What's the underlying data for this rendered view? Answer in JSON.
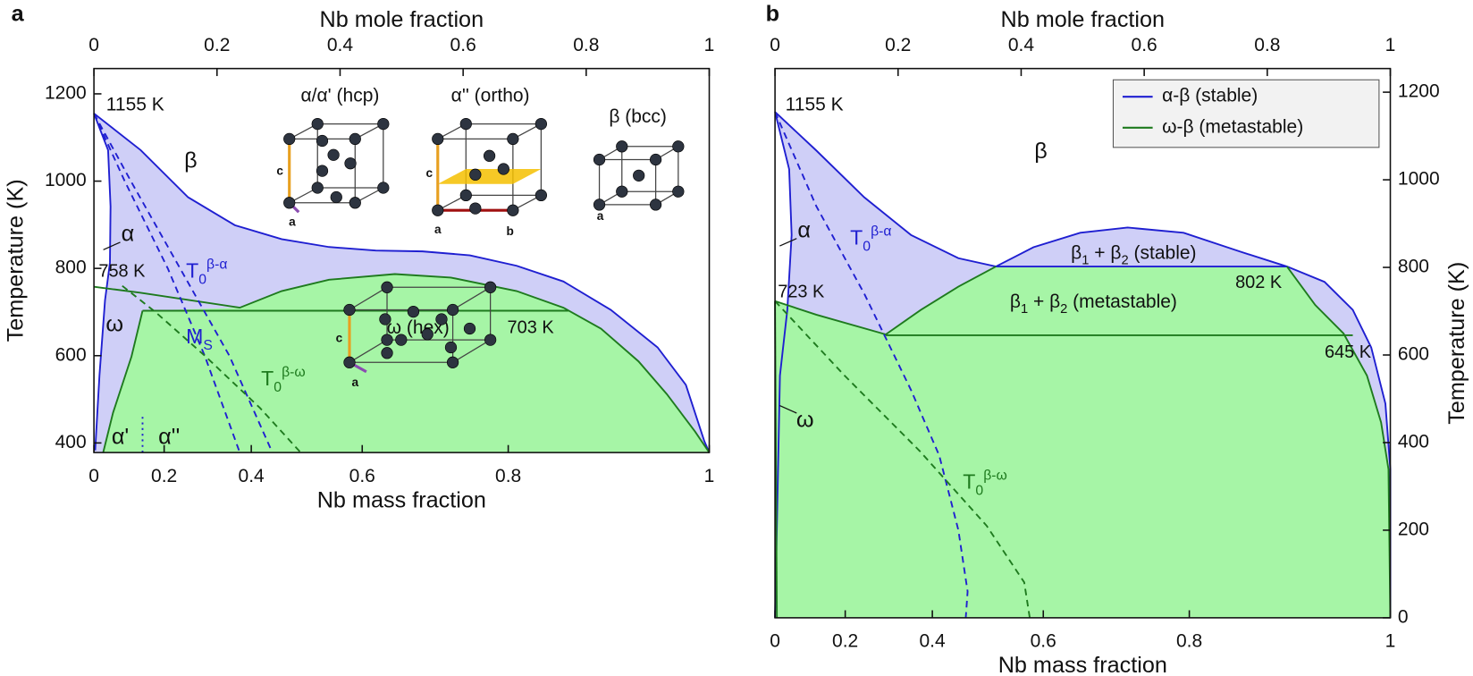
{
  "chart_data": [
    {
      "type": "line",
      "panel_label": "a",
      "x_title_top": "Nb mole fraction",
      "x_title": "Nb mass fraction",
      "y_title": "Temperature (K)",
      "xlim": [
        0,
        1
      ],
      "ylim": [
        378,
        1258
      ],
      "xticks_top": [
        0,
        0.2,
        0.4,
        0.6,
        0.8,
        1
      ],
      "xticks": [
        0,
        {
          "value": 0.1141,
          "label": "0.2"
        },
        {
          "value": 0.2557,
          "label": "0.4"
        },
        {
          "value": 0.436,
          "label": "0.6"
        },
        {
          "value": 0.6733,
          "label": "0.8"
        },
        1
      ],
      "yticks": [
        400,
        600,
        800,
        1000,
        1200
      ],
      "areas": [
        {
          "color": "#cfcff7",
          "x": [
            0,
            0.076,
            0.153,
            0.229,
            0.305,
            0.382,
            0.458,
            0.534,
            0.611,
            0.687,
            0.763,
            0.84,
            0.916,
            0.962,
            0.992,
            1,
            0
          ],
          "y": [
            1155,
            1071,
            963,
            899,
            867,
            849,
            841,
            839,
            830,
            806,
            770,
            705,
            619,
            533,
            404,
            378,
            378
          ]
        },
        {
          "color": "#ffffff",
          "x": [
            0,
            0.023,
            0.027,
            0.026,
            0.018,
            0.009,
            0.002,
            0
          ],
          "y": [
            1155,
            1071,
            942,
            813,
            727,
            555,
            383,
            378
          ]
        },
        {
          "color": "#a6f5a6",
          "x": [
            0.015,
            0.031,
            0.061,
            0.079,
            0.237,
            0.305,
            0.382,
            0.489,
            0.58,
            0.687,
            0.763,
            0.824,
            0.885,
            0.931,
            0.977,
            1
          ],
          "y": [
            378,
            469,
            598,
            703,
            710,
            748,
            774,
            787,
            779,
            748,
            710,
            662,
            587,
            512,
            426,
            378
          ]
        }
      ],
      "series": [
        {
          "color": "#1f1fd1",
          "style": "solid",
          "x": [
            0,
            0.076,
            0.153,
            0.229,
            0.305,
            0.382,
            0.458,
            0.534,
            0.611,
            0.687,
            0.763,
            0.84,
            0.916,
            0.962,
            0.992,
            1
          ],
          "y": [
            1155,
            1071,
            963,
            899,
            867,
            849,
            841,
            839,
            830,
            806,
            770,
            705,
            619,
            533,
            404,
            378
          ]
        },
        {
          "color": "#1f1fd1",
          "style": "solid",
          "x": [
            0,
            0.023,
            0.027,
            0.026,
            0.018,
            0.009,
            0.002
          ],
          "y": [
            1155,
            1071,
            942,
            813,
            727,
            555,
            383
          ]
        },
        {
          "color": "#1e7a1e",
          "style": "solid",
          "x": [
            0,
            0.076,
            0.237,
            0.305,
            0.382,
            0.489,
            0.58,
            0.687,
            0.763,
            0.824,
            0.885,
            0.931,
            0.977,
            1
          ],
          "y": [
            758,
            744,
            710,
            748,
            774,
            787,
            779,
            748,
            710,
            662,
            587,
            512,
            426,
            378
          ]
        },
        {
          "color": "#1e7a1e",
          "style": "solid",
          "x": [
            0.079,
            0.771
          ],
          "y": [
            703,
            703
          ]
        },
        {
          "color": "#1e7a1e",
          "style": "solid",
          "x": [
            0.079,
            0.061,
            0.031,
            0.015
          ],
          "y": [
            703,
            598,
            469,
            378
          ]
        },
        {
          "color": "#1f1fd1",
          "style": "dashed",
          "x": [
            0,
            0.05,
            0.12,
            0.18,
            0.237
          ],
          "y": [
            1155,
            1000,
            800,
            600,
            378
          ]
        },
        {
          "color": "#1f1fd1",
          "style": "dashed",
          "x": [
            0,
            0.06,
            0.14,
            0.22,
            0.29
          ],
          "y": [
            1155,
            1000,
            800,
            600,
            378
          ]
        },
        {
          "color": "#1e7a1e",
          "style": "dashed",
          "x": [
            0.046,
            0.1,
            0.18,
            0.27,
            0.336
          ],
          "y": [
            760,
            700,
            600,
            480,
            378
          ]
        },
        {
          "color": "#1f1fd1",
          "style": "dotted",
          "x": [
            0.079,
            0.079
          ],
          "y": [
            378,
            460
          ]
        }
      ],
      "annotations": [
        {
          "segments": [
            {
              "t": "1155 K"
            }
          ]
        },
        {
          "segments": [
            {
              "t": "β"
            }
          ]
        },
        {
          "segments": [
            {
              "t": "α"
            }
          ]
        },
        {
          "segments": [
            {
              "t": "758 K"
            }
          ]
        },
        {
          "segments": [
            {
              "t": "ω"
            }
          ]
        },
        {
          "segments": [
            {
              "t": "T"
            },
            {
              "t": "0",
              "s": "sub"
            },
            {
              "t": "β-α",
              "s": "super"
            }
          ]
        },
        {
          "segments": [
            {
              "t": "M"
            },
            {
              "t": "S",
              "s": "sub"
            }
          ]
        },
        {
          "segments": [
            {
              "t": "T"
            },
            {
              "t": "0",
              "s": "sub"
            },
            {
              "t": "β-ω",
              "s": "super"
            }
          ]
        },
        {
          "segments": [
            {
              "t": "703 K"
            }
          ]
        },
        {
          "segments": [
            {
              "t": "α'"
            }
          ]
        },
        {
          "segments": [
            {
              "t": "α''"
            }
          ]
        }
      ],
      "insets": [
        {
          "title": "α/α' (hcp)",
          "labels": [
            "c",
            "a"
          ]
        },
        {
          "title": "α'' (ortho)",
          "labels": [
            "c",
            "a",
            "b"
          ]
        },
        {
          "title": "β (bcc)",
          "labels": [
            "a"
          ]
        },
        {
          "title": "ω (hex)",
          "labels": [
            "c",
            "a"
          ]
        }
      ]
    },
    {
      "type": "line",
      "panel_label": "b",
      "x_title_top": "Nb mole fraction",
      "x_title": "Nb mass fraction",
      "y_title": "Temperature (K)",
      "xlim": [
        0,
        1
      ],
      "ylim": [
        0,
        1254
      ],
      "xticks_top": [
        0,
        0.2,
        0.4,
        0.6,
        0.8,
        1
      ],
      "xticks": [
        0,
        {
          "value": 0.1141,
          "label": "0.2"
        },
        {
          "value": 0.2557,
          "label": "0.4"
        },
        {
          "value": 0.436,
          "label": "0.6"
        },
        {
          "value": 0.6733,
          "label": "0.8"
        },
        1
      ],
      "yticks": [
        0,
        200,
        400,
        600,
        800,
        1000,
        1200
      ],
      "legend": {
        "position": "upper right",
        "entries": [
          {
            "name": "α-β (stable)",
            "color": "#1f1fd1"
          },
          {
            "name": "ω-β (metastable)",
            "color": "#1e7a1e"
          }
        ]
      },
      "areas": [
        {
          "color": "#cfcff7",
          "x": [
            0,
            0.067,
            0.145,
            0.221,
            0.298,
            0.359,
            0.42,
            0.496,
            0.573,
            0.664,
            0.756,
            0.832,
            0.893,
            0.939,
            0.969,
            0.992,
            1,
            1,
            0
          ],
          "y": [
            1155,
            1067,
            960,
            874,
            821,
            802,
            846,
            879,
            891,
            879,
            836,
            802,
            767,
            703,
            617,
            489,
            339,
            0,
            0
          ]
        },
        {
          "color": "#ffffff",
          "x": [
            0,
            0.023,
            0.027,
            0.02,
            0.008,
            0
          ],
          "y": [
            1155,
            1024,
            874,
            703,
            553,
            0
          ]
        },
        {
          "color": "#a6f5a6",
          "x": [
            0,
            0.067,
            0.18,
            0.237,
            0.298,
            0.359,
            0.832,
            0.878,
            0.924,
            0.962,
            0.985,
            0.997,
            1,
            0.003
          ],
          "y": [
            723,
            692,
            647,
            703,
            756,
            802,
            802,
            714,
            649,
            553,
            446,
            339,
            0,
            0
          ]
        }
      ],
      "series": [
        {
          "color": "#1f1fd1",
          "style": "solid",
          "x": [
            0,
            0.067,
            0.145,
            0.221,
            0.298,
            0.359,
            0.42,
            0.496,
            0.573,
            0.664,
            0.756,
            0.832,
            0.893,
            0.939,
            0.969,
            0.992,
            1,
            1
          ],
          "y": [
            1155,
            1067,
            960,
            874,
            821,
            802,
            846,
            879,
            891,
            879,
            836,
            802,
            767,
            703,
            617,
            489,
            339,
            0
          ]
        },
        {
          "color": "#1f1fd1",
          "style": "solid",
          "x": [
            0,
            0.023,
            0.027,
            0.02,
            0.008,
            0
          ],
          "y": [
            1155,
            1024,
            874,
            703,
            553,
            0
          ]
        },
        {
          "color": "#1f1fd1",
          "style": "solid",
          "x": [
            0.359,
            0.832
          ],
          "y": [
            802,
            802
          ]
        },
        {
          "color": "#1e7a1e",
          "style": "solid",
          "x": [
            0,
            0.067,
            0.18,
            0.237,
            0.298,
            0.359
          ],
          "y": [
            723,
            692,
            647,
            703,
            756,
            802
          ]
        },
        {
          "color": "#1e7a1e",
          "style": "solid",
          "x": [
            0.832,
            0.878,
            0.924,
            0.962,
            0.985,
            0.997,
            1
          ],
          "y": [
            802,
            714,
            649,
            553,
            446,
            339,
            0
          ]
        },
        {
          "color": "#1e7a1e",
          "style": "solid",
          "x": [
            0.18,
            0.939
          ],
          "y": [
            645,
            645
          ]
        },
        {
          "color": "#1e7a1e",
          "style": "solid",
          "x": [
            0,
            0.003
          ],
          "y": [
            723,
            0
          ]
        },
        {
          "color": "#1f1fd1",
          "style": "dashed",
          "x": [
            0,
            0.067,
            0.145,
            0.221,
            0.267,
            0.298,
            0.313,
            0.31
          ],
          "y": [
            1155,
            940,
            740,
            520,
            370,
            200,
            60,
            0
          ]
        },
        {
          "color": "#1e7a1e",
          "style": "dashed",
          "x": [
            0,
            0.113,
            0.235,
            0.344,
            0.405,
            0.414
          ],
          "y": [
            723,
            553,
            381,
            210,
            81,
            0
          ]
        }
      ],
      "annotations": [
        {
          "segments": [
            {
              "t": "1155 K"
            }
          ]
        },
        {
          "segments": [
            {
              "t": "β"
            }
          ]
        },
        {
          "segments": [
            {
              "t": "α"
            }
          ]
        },
        {
          "segments": [
            {
              "t": "T"
            },
            {
              "t": "0",
              "s": "sub"
            },
            {
              "t": "β-α",
              "s": "super"
            }
          ]
        },
        {
          "segments": [
            {
              "t": "β"
            },
            {
              "t": "1",
              "s": "sub"
            },
            {
              "t": " + β"
            },
            {
              "t": "2",
              "s": "sub"
            },
            {
              "t": " (stable)"
            }
          ]
        },
        {
          "segments": [
            {
              "t": "802 K"
            }
          ]
        },
        {
          "segments": [
            {
              "t": "723 K"
            }
          ]
        },
        {
          "segments": [
            {
              "t": "β"
            },
            {
              "t": "1",
              "s": "sub"
            },
            {
              "t": " + β"
            },
            {
              "t": "2",
              "s": "sub"
            },
            {
              "t": " (metastable)"
            }
          ]
        },
        {
          "segments": [
            {
              "t": "645 K"
            }
          ]
        },
        {
          "segments": [
            {
              "t": "ω"
            }
          ]
        },
        {
          "segments": [
            {
              "t": "T"
            },
            {
              "t": "0",
              "s": "sub"
            },
            {
              "t": "β-ω",
              "s": "super"
            }
          ]
        }
      ]
    }
  ]
}
